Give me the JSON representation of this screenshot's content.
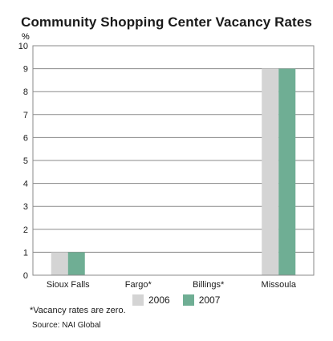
{
  "chart_data": {
    "type": "bar",
    "title": "Community Shopping Center Vacancy Rates",
    "ylabel": "%",
    "xlabel": "",
    "ylim": [
      0,
      10
    ],
    "yticks": [
      0,
      1,
      2,
      3,
      4,
      5,
      6,
      7,
      8,
      9,
      10
    ],
    "categories": [
      "Sioux Falls",
      "Fargo*",
      "Billings*",
      "Missoula"
    ],
    "series": [
      {
        "name": "2006",
        "color": "#d4d4d4",
        "values": [
          1,
          0,
          0,
          9
        ]
      },
      {
        "name": "2007",
        "color": "#6fae94",
        "values": [
          1,
          0,
          0,
          9
        ]
      }
    ],
    "grid": true,
    "legend_position": "bottom-center"
  },
  "footnote": "*Vacancy rates are zero.",
  "source": "Source: NAI Global"
}
